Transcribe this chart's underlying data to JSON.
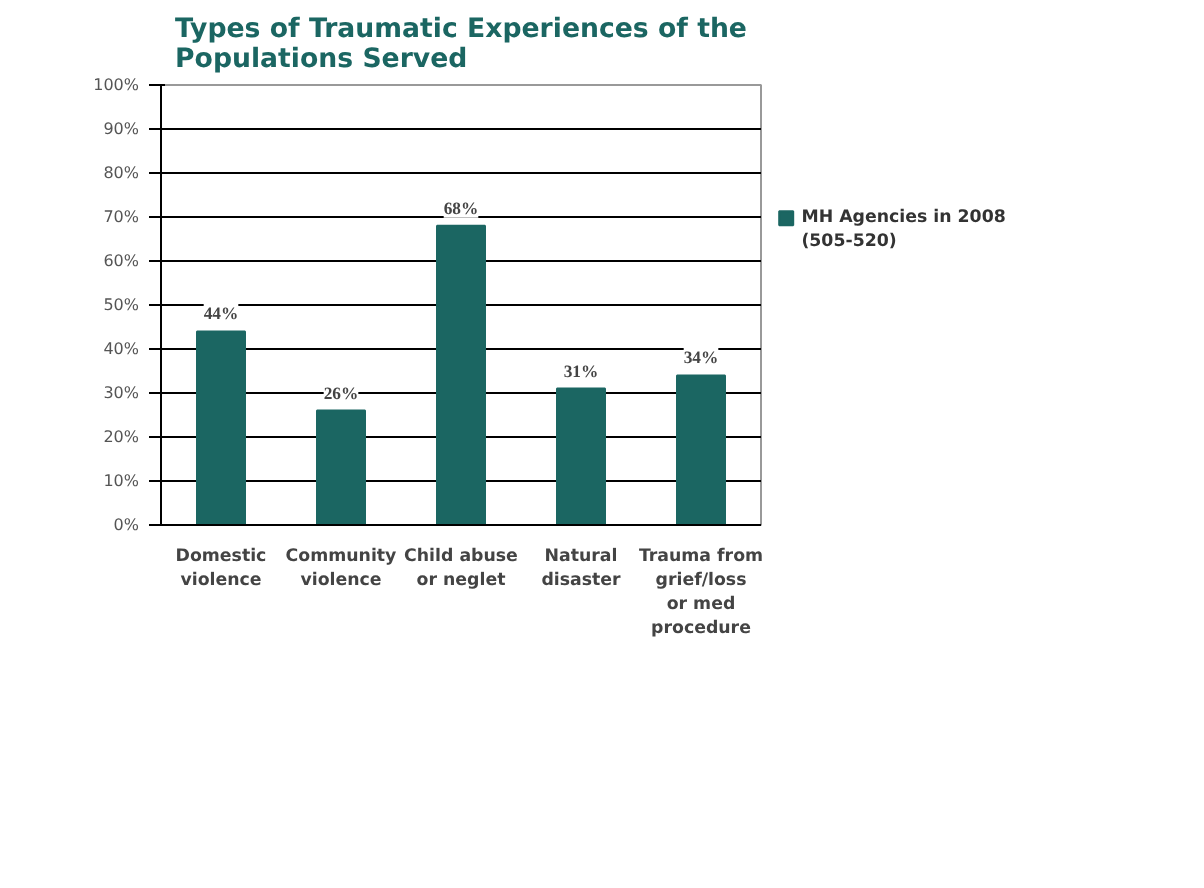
{
  "chart_data": {
    "type": "bar",
    "title": "Types of Traumatic Experiences of the Populations Served",
    "categories": [
      "Domestic violence",
      "Community violence",
      "Child abuse or neglet",
      "Natural disaster",
      "Trauma from grief/loss or med procedure"
    ],
    "series": [
      {
        "name": "MH Agencies in 2008 (505-520)",
        "color": "#1b6662",
        "values": [
          44,
          26,
          68,
          31,
          34
        ],
        "value_labels": [
          "44%",
          "26%",
          "68%",
          "31%",
          "34%"
        ]
      }
    ],
    "ylim": [
      0,
      100
    ],
    "yticks": [
      {
        "value": 0,
        "label": "0%"
      },
      {
        "value": 10,
        "label": "10%"
      },
      {
        "value": 20,
        "label": "20%"
      },
      {
        "value": 30,
        "label": "30%"
      },
      {
        "value": 40,
        "label": "40%"
      },
      {
        "value": 50,
        "label": "50%"
      },
      {
        "value": 60,
        "label": "60%"
      },
      {
        "value": 70,
        "label": "70%"
      },
      {
        "value": 80,
        "label": "80%"
      },
      {
        "value": 90,
        "label": "90%"
      },
      {
        "value": 100,
        "label": "100%"
      }
    ],
    "grid": "y",
    "legend": "right"
  }
}
